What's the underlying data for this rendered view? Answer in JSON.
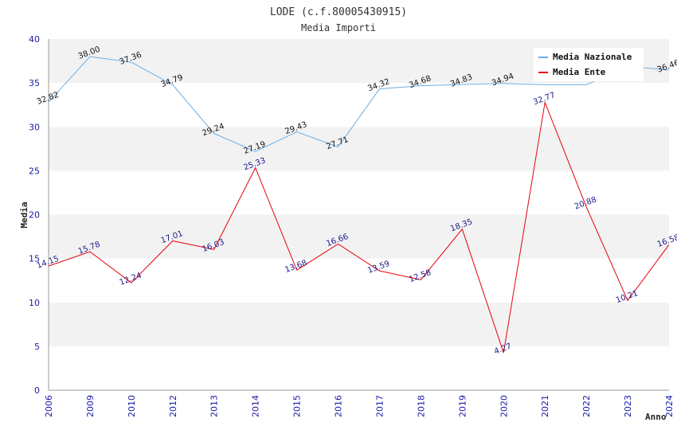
{
  "chart_data": {
    "type": "line",
    "title": "LODE (c.f.80005430915)",
    "subtitle": "Media Importi",
    "ylabel": "Media",
    "xlabel": "Anno",
    "ylim": [
      0,
      40
    ],
    "yticks": [
      0,
      5,
      10,
      15,
      20,
      25,
      30,
      35,
      40
    ],
    "categories": [
      "2006",
      "2009",
      "2010",
      "2012",
      "2013",
      "2014",
      "2015",
      "2016",
      "2017",
      "2018",
      "2019",
      "2020",
      "2021",
      "2022",
      "2023",
      "2024"
    ],
    "series": [
      {
        "name": "Media Nazionale",
        "color": "#6aaee8",
        "values": [
          32.82,
          38.0,
          37.36,
          34.79,
          29.24,
          27.19,
          29.43,
          27.71,
          34.32,
          34.68,
          34.83,
          34.94,
          34.8,
          34.8,
          36.9,
          36.46
        ],
        "labels": [
          "32.82",
          "38.00",
          "37.36",
          "34.79",
          "29.24",
          "27.19",
          "29.43",
          "27.71",
          "34.32",
          "34.68",
          "34.83",
          "34.94",
          "",
          "",
          "",
          "36.46"
        ]
      },
      {
        "name": "Media Ente",
        "color": "#e8000b",
        "values": [
          14.15,
          15.78,
          12.24,
          17.01,
          16.03,
          25.33,
          13.68,
          16.66,
          13.59,
          12.58,
          18.35,
          4.27,
          32.77,
          20.88,
          10.21,
          16.58
        ],
        "labels": [
          "14.15",
          "15.78",
          "12.24",
          "17.01",
          "16.03",
          "25.33",
          "13.68",
          "16.66",
          "13.59",
          "12.58",
          "18.35",
          "4.27",
          "32.77",
          "20.88",
          "10.21",
          "16.58"
        ]
      }
    ],
    "legend": "top-right",
    "grid": true
  },
  "colors": {
    "band": "#f2f2f2",
    "axis": "#999999"
  }
}
